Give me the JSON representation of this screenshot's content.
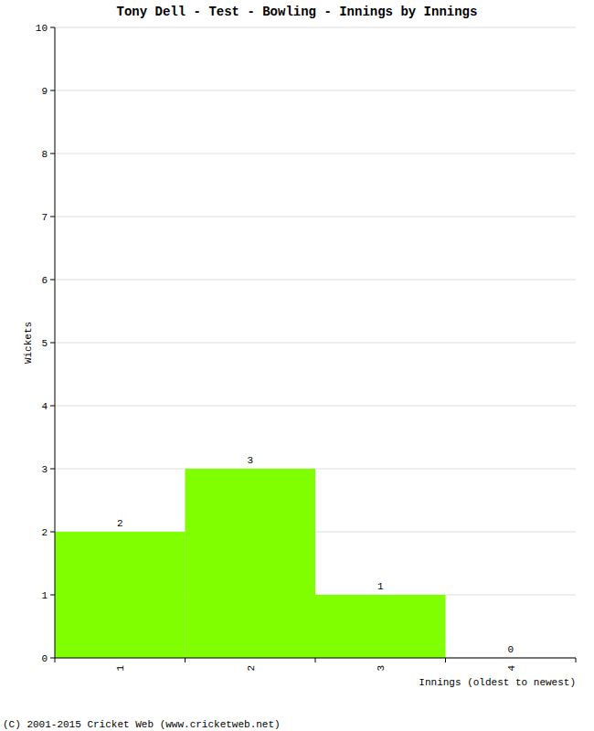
{
  "chart_data": {
    "type": "bar",
    "title": "Tony Dell - Test - Bowling - Innings by Innings",
    "xlabel": "Innings (oldest to newest)",
    "ylabel": "Wickets",
    "annotations": [
      "(C) 2001-2015 Cricket Web (www.cricketweb.net)"
    ],
    "categories": [
      "1",
      "2",
      "3",
      "4"
    ],
    "values": [
      2,
      3,
      1,
      0
    ],
    "color": "#7fff00",
    "ylim": [
      0,
      10
    ],
    "yticks": [
      0,
      1,
      2,
      3,
      4,
      5,
      6,
      7,
      8,
      9,
      10
    ],
    "grid": true,
    "data_labels": true
  }
}
